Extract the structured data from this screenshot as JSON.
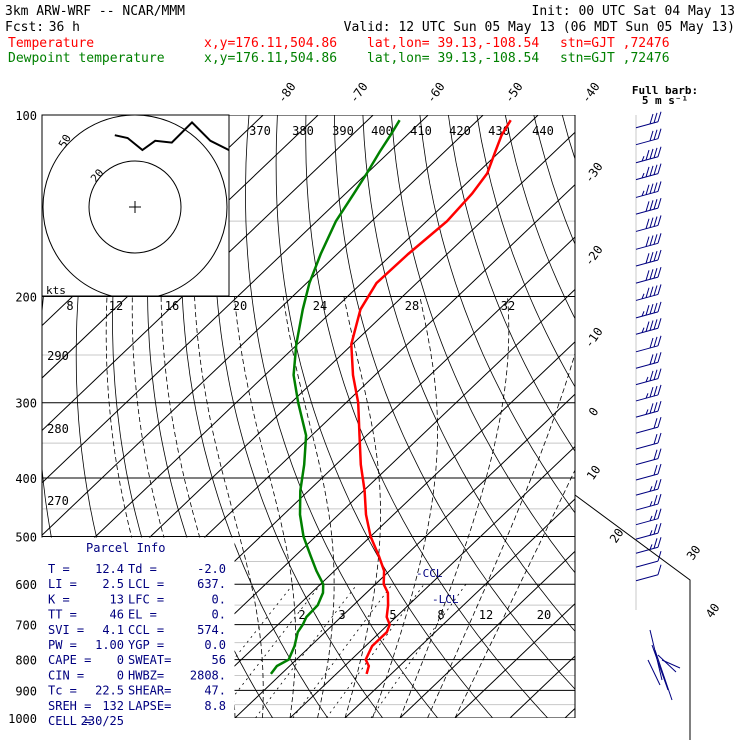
{
  "header": {
    "title": "3km ARW-WRF -- NCAR/MMM",
    "init": "Init: 00 UTC Sat 04 May 13",
    "fcst_label": "Fcst:",
    "fcst_value": "36 h",
    "valid": "Valid: 12 UTC Sun 05 May 13 (06 MDT Sun 05 May 13)",
    "temp_line": {
      "label": "Temperature",
      "xy": "x,y=176.11,504.86",
      "latlon": "lat,lon= 39.13,-108.54",
      "stn": "stn=GJT ,72476",
      "color": "#ff0000"
    },
    "dew_line": {
      "label": "Dewpoint temperature",
      "xy": "x,y=176.11,504.86",
      "latlon": "lat,lon= 39.13,-108.54",
      "stn": "stn=GJT ,72476",
      "color": "#008000"
    }
  },
  "barb_legend": {
    "line1": "Full barb:",
    "line2": "5 m s⁻¹"
  },
  "hodograph": {
    "units": "kts",
    "rings": [
      "20",
      "50"
    ],
    "trace": [
      [
        -0.22,
        0.78
      ],
      [
        -0.08,
        0.75
      ],
      [
        0.08,
        0.62
      ],
      [
        0.22,
        0.72
      ],
      [
        0.4,
        0.7
      ],
      [
        0.62,
        0.92
      ],
      [
        0.82,
        0.72
      ],
      [
        1.02,
        0.62
      ],
      [
        1.12,
        0.52
      ],
      [
        1.18,
        0.52
      ]
    ]
  },
  "parcel": {
    "title": "Parcel Info",
    "rows": [
      [
        "T  =",
        "12.4",
        "Td =",
        "-2.0"
      ],
      [
        "LI =",
        "2.5",
        "LCL =",
        "637."
      ],
      [
        "K  =",
        "13",
        "LFC =",
        "0."
      ],
      [
        "TT =",
        "46",
        "EL =",
        "0."
      ],
      [
        "SVI =",
        "4.1",
        "CCL =",
        "574."
      ],
      [
        "PW =",
        "1.00",
        "YGP =",
        "0.0"
      ],
      [
        "CAPE =",
        "0",
        "SWEAT=",
        "56"
      ],
      [
        "CIN =",
        "0",
        "HWBZ=",
        "2808."
      ],
      [
        "Tc =",
        "22.5",
        "SHEAR=",
        "47."
      ],
      [
        "SREH =",
        "132",
        "LAPSE=",
        "8.8"
      ],
      [
        "CELL =",
        "230/25",
        "",
        ""
      ]
    ]
  },
  "annotations": {
    "ccl": "-CCL",
    "lcl": "-LCL"
  },
  "chart_data": {
    "type": "line",
    "title": "",
    "y_scale": "log-pressure",
    "ylabel": "",
    "ylim": [
      1000,
      100
    ],
    "pressure_ticks": [
      "100",
      "200",
      "300",
      "400",
      "500",
      "600",
      "700",
      "800",
      "900",
      "1000"
    ],
    "temp_isotherm_labels": [
      "-80",
      "-70",
      "-60",
      "-50",
      "-40",
      "-30",
      "-20",
      "-10",
      "0",
      "10",
      "20",
      "30",
      "40"
    ],
    "theta_labels": [
      "370",
      "380",
      "390",
      "400",
      "410",
      "420",
      "430",
      "440"
    ],
    "theta_left_labels": [
      "290",
      "280",
      "270"
    ],
    "mixing_ratio_labels": [
      "8",
      "12",
      "16",
      "20",
      "24",
      "28",
      "32"
    ],
    "mixing_ratio_low_labels": [
      "2",
      "3",
      "5",
      "8",
      "12",
      "20"
    ],
    "series": [
      {
        "name": "Temperature",
        "color": "#ff0000",
        "points": [
          [
            845,
            15.5
          ],
          [
            820,
            14.4
          ],
          [
            800,
            12.6
          ],
          [
            760,
            11.2
          ],
          [
            720,
            11.2
          ],
          [
            700,
            10.3
          ],
          [
            680,
            8.3
          ],
          [
            650,
            6.3
          ],
          [
            620,
            3.9
          ],
          [
            600,
            1.5
          ],
          [
            570,
            -1.0
          ],
          [
            540,
            -4.6
          ],
          [
            500,
            -10.0
          ],
          [
            460,
            -15.0
          ],
          [
            420,
            -19.8
          ],
          [
            380,
            -25.5
          ],
          [
            340,
            -31.3
          ],
          [
            300,
            -37.8
          ],
          [
            270,
            -44.0
          ],
          [
            240,
            -50.2
          ],
          [
            210,
            -55.2
          ],
          [
            190,
            -57.3
          ],
          [
            170,
            -57.1
          ],
          [
            150,
            -56.3
          ],
          [
            135,
            -57.0
          ],
          [
            125,
            -58.1
          ],
          [
            115,
            -60.8
          ],
          [
            108,
            -62.8
          ],
          [
            102,
            -64.0
          ]
        ]
      },
      {
        "name": "Dewpoint temperature",
        "color": "#008000",
        "points": [
          [
            845,
            -1.9
          ],
          [
            820,
            -2.3
          ],
          [
            800,
            -1.4
          ],
          [
            760,
            -2.9
          ],
          [
            720,
            -5.0
          ],
          [
            700,
            -5.5
          ],
          [
            680,
            -6.3
          ],
          [
            650,
            -6.5
          ],
          [
            620,
            -7.9
          ],
          [
            600,
            -9.5
          ],
          [
            570,
            -13.3
          ],
          [
            540,
            -17.0
          ],
          [
            500,
            -22.2
          ],
          [
            460,
            -27.0
          ],
          [
            420,
            -31.5
          ],
          [
            380,
            -35.8
          ],
          [
            340,
            -41.0
          ],
          [
            300,
            -48.7
          ],
          [
            270,
            -54.8
          ],
          [
            240,
            -60.2
          ],
          [
            210,
            -65.7
          ],
          [
            190,
            -69.5
          ],
          [
            170,
            -73.0
          ],
          [
            150,
            -76.5
          ],
          [
            135,
            -78.5
          ],
          [
            125,
            -80.0
          ],
          [
            115,
            -81.8
          ],
          [
            108,
            -83.0
          ],
          [
            102,
            -84.2
          ]
        ]
      }
    ],
    "wind_barbs": [
      {
        "p": 105,
        "spd": 30
      },
      {
        "p": 112,
        "spd": 30
      },
      {
        "p": 120,
        "spd": 35
      },
      {
        "p": 128,
        "spd": 35
      },
      {
        "p": 137,
        "spd": 35
      },
      {
        "p": 146,
        "spd": 40
      },
      {
        "p": 156,
        "spd": 40
      },
      {
        "p": 167,
        "spd": 40
      },
      {
        "p": 178,
        "spd": 40
      },
      {
        "p": 190,
        "spd": 40
      },
      {
        "p": 203,
        "spd": 35
      },
      {
        "p": 217,
        "spd": 35
      },
      {
        "p": 231,
        "spd": 35
      },
      {
        "p": 247,
        "spd": 30
      },
      {
        "p": 263,
        "spd": 30
      },
      {
        "p": 280,
        "spd": 25
      },
      {
        "p": 298,
        "spd": 25
      },
      {
        "p": 317,
        "spd": 25
      },
      {
        "p": 337,
        "spd": 20
      },
      {
        "p": 358,
        "spd": 20
      },
      {
        "p": 380,
        "spd": 20
      },
      {
        "p": 403,
        "spd": 20
      },
      {
        "p": 427,
        "spd": 15
      },
      {
        "p": 452,
        "spd": 15
      },
      {
        "p": 478,
        "spd": 15
      },
      {
        "p": 505,
        "spd": 15
      },
      {
        "p": 533,
        "spd": 15
      },
      {
        "p": 562,
        "spd": 10
      },
      {
        "p": 592,
        "spd": 10
      }
    ]
  }
}
